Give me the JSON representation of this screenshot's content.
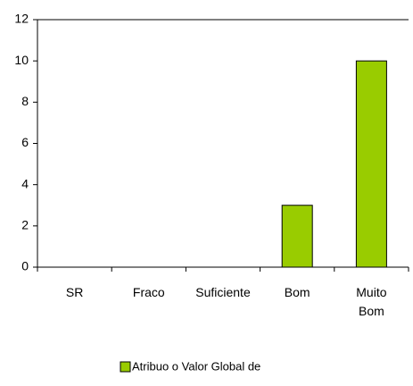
{
  "chart_data": {
    "type": "bar",
    "categories": [
      "SR",
      "Fraco",
      "Suficiente",
      "Bom",
      "Muito Bom"
    ],
    "series": [
      {
        "name": "Atribuo o Valor Global de",
        "color": "#99cc00",
        "values": [
          0,
          0,
          0,
          3,
          10
        ]
      }
    ],
    "ylim": [
      0,
      12
    ],
    "yticks": [
      0,
      2,
      4,
      6,
      8,
      10,
      12
    ],
    "grid": false,
    "legend": "bottom"
  }
}
